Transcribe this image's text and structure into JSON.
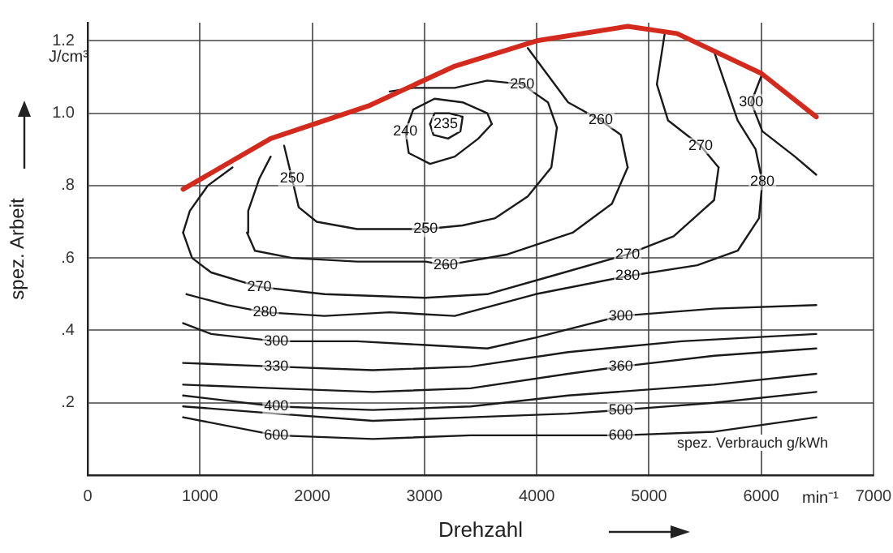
{
  "chart_data": {
    "type": "line",
    "xlabel": "Drehzahl",
    "ylabel": "spez. Arbeit",
    "xlim": [
      0,
      7000
    ],
    "ylim": [
      0,
      1.25
    ],
    "xticks": [
      0,
      1000,
      2000,
      3000,
      4000,
      5000,
      6000,
      7000
    ],
    "yticks": [
      {
        "value": 0,
        "label": null
      },
      {
        "value": 0.2,
        "label": ".2"
      },
      {
        "value": 0.4,
        "label": ".4"
      },
      {
        "value": 0.6,
        "label": ".6"
      },
      {
        "value": 0.8,
        "label": ".8"
      },
      {
        "value": 1.0,
        "label": "1.0"
      },
      {
        "value": 1.2,
        "label": "1.2"
      }
    ],
    "grid": true,
    "series": [
      {
        "color": "#d42a1e",
        "x": [
          850,
          1630,
          2500,
          3270,
          4000,
          4810,
          5250,
          6000,
          6490
        ],
        "values": [
          0.79,
          0.93,
          1.02,
          1.13,
          1.2,
          1.24,
          1.22,
          1.11,
          0.99
        ]
      },
      {
        "color": "#1a1a1a",
        "x": [
          3050,
          3090,
          3220,
          3340
        ],
        "values": [
          0.97,
          1.0,
          1.0,
          0.99
        ]
      },
      {
        "color": "#1a1a1a",
        "x": [
          3050,
          3080,
          3210,
          3320,
          3340
        ],
        "values": [
          0.97,
          0.94,
          0.93,
          0.95,
          0.99
        ]
      },
      {
        "color": "#1a1a1a",
        "x": [
          2830,
          2900,
          3090,
          3340,
          3560,
          3600
        ],
        "values": [
          0.95,
          1.01,
          1.04,
          1.03,
          1.0,
          0.97
        ]
      },
      {
        "color": "#1a1a1a",
        "x": [
          2830,
          2860,
          3050,
          3270,
          3480,
          3600
        ],
        "values": [
          0.95,
          0.89,
          0.86,
          0.88,
          0.93,
          0.97
        ]
      },
      {
        "color": "#1a1a1a",
        "x": [
          1750,
          1820,
          1880,
          2040,
          2400,
          3010,
          3340,
          3630,
          3920,
          4130,
          4180
        ],
        "values": [
          0.91,
          0.82,
          0.74,
          0.7,
          0.68,
          0.68,
          0.69,
          0.71,
          0.77,
          0.85,
          0.96
        ]
      },
      {
        "color": "#1a1a1a",
        "x": [
          2690,
          2900,
          3270,
          3560,
          3870,
          4100,
          4180
        ],
        "values": [
          1.06,
          1.07,
          1.07,
          1.09,
          1.08,
          1.03,
          0.96
        ]
      },
      {
        "color": "#1a1a1a",
        "x": [
          1420,
          1430,
          1530,
          1630
        ],
        "values": [
          0.67,
          0.73,
          0.82,
          0.88
        ]
      },
      {
        "color": "#1a1a1a",
        "x": [
          1420,
          1490,
          1820,
          2400,
          3010,
          3190,
          3740,
          4320,
          4670,
          4810
        ],
        "values": [
          0.67,
          0.62,
          0.6,
          0.59,
          0.59,
          0.58,
          0.61,
          0.67,
          0.75,
          0.85
        ]
      },
      {
        "color": "#1a1a1a",
        "x": [
          3920,
          4280,
          4570,
          4750,
          4810
        ],
        "values": [
          1.18,
          1.03,
          0.98,
          0.94,
          0.85
        ]
      },
      {
        "color": "#1a1a1a",
        "x": [
          850,
          910,
          1070,
          1290
        ],
        "values": [
          0.67,
          0.73,
          0.8,
          0.85
        ]
      },
      {
        "color": "#1a1a1a",
        "x": [
          850,
          930,
          1100,
          1530,
          2110,
          3010,
          3560,
          4130,
          4810,
          5220,
          5580,
          5620
        ],
        "values": [
          0.67,
          0.6,
          0.56,
          0.52,
          0.5,
          0.49,
          0.5,
          0.55,
          0.61,
          0.66,
          0.76,
          0.85
        ]
      },
      {
        "color": "#1a1a1a",
        "x": [
          5070,
          5170,
          5460,
          5620
        ],
        "values": [
          1.08,
          0.98,
          0.91,
          0.85
        ]
      },
      {
        "color": "#1a1a1a",
        "x": [
          5070,
          5140
        ],
        "values": [
          1.08,
          1.22
        ]
      },
      {
        "color": "#1a1a1a",
        "x": [
          880,
          1240,
          1580,
          2110,
          2690,
          3270,
          3990,
          4810,
          5430,
          5790,
          5980,
          6010
        ],
        "values": [
          0.5,
          0.47,
          0.45,
          0.44,
          0.45,
          0.44,
          0.5,
          0.55,
          0.58,
          0.62,
          0.71,
          0.81
        ]
      },
      {
        "color": "#1a1a1a",
        "x": [
          5580,
          5790,
          5950,
          6010
        ],
        "values": [
          1.17,
          0.98,
          0.9,
          0.81
        ]
      },
      {
        "color": "#1a1a1a",
        "x": [
          5910,
          6010
        ],
        "values": [
          1.03,
          1.11
        ]
      },
      {
        "color": "#1a1a1a",
        "x": [
          5910,
          6010,
          6300,
          6490
        ],
        "values": [
          1.03,
          0.95,
          0.88,
          0.83
        ]
      },
      {
        "color": "#1a1a1a",
        "x": [
          850,
          1100,
          1680,
          2400,
          2980,
          3560,
          3990,
          4750,
          5580,
          6490
        ],
        "values": [
          0.42,
          0.39,
          0.37,
          0.37,
          0.36,
          0.35,
          0.38,
          0.44,
          0.46,
          0.47
        ]
      },
      {
        "color": "#1a1a1a",
        "x": [
          850,
          1680,
          2540,
          3410,
          4280,
          5290,
          6490
        ],
        "values": [
          0.31,
          0.3,
          0.29,
          0.3,
          0.34,
          0.37,
          0.39
        ]
      },
      {
        "color": "#1a1a1a",
        "x": [
          850,
          1680,
          2540,
          3410,
          4280,
          4750,
          5580,
          6490
        ],
        "values": [
          0.25,
          0.24,
          0.23,
          0.24,
          0.28,
          0.3,
          0.33,
          0.35
        ]
      },
      {
        "color": "#1a1a1a",
        "x": [
          850,
          1680,
          2540,
          3410,
          4280,
          5580,
          6490
        ],
        "values": [
          0.22,
          0.19,
          0.18,
          0.19,
          0.22,
          0.25,
          0.28
        ]
      },
      {
        "color": "#1a1a1a",
        "x": [
          850,
          1680,
          2540,
          3410,
          4280,
          4750,
          5580,
          6490
        ],
        "values": [
          0.19,
          0.17,
          0.15,
          0.16,
          0.17,
          0.18,
          0.2,
          0.23
        ]
      },
      {
        "color": "#1a1a1a",
        "x": [
          850,
          1680,
          2540,
          3410,
          4280,
          4750,
          5580,
          6490
        ],
        "values": [
          0.16,
          0.11,
          0.1,
          0.11,
          0.11,
          0.11,
          0.12,
          0.16
        ]
      }
    ],
    "annotations": [
      "J/cm³",
      "min⁻¹",
      "spez. Verbrauch   g/kWh",
      {
        "text": "235",
        "x": 3190,
        "y": 0.97
      },
      {
        "text": "240",
        "x": 2830,
        "y": 0.95
      },
      {
        "text": "250",
        "x": 1820,
        "y": 0.82
      },
      {
        "text": "250",
        "x": 3010,
        "y": 0.68
      },
      {
        "text": "250",
        "x": 3870,
        "y": 1.08
      },
      {
        "text": "260",
        "x": 3190,
        "y": 0.58
      },
      {
        "text": "260",
        "x": 4570,
        "y": 0.98
      },
      {
        "text": "270",
        "x": 1530,
        "y": 0.52
      },
      {
        "text": "270",
        "x": 4810,
        "y": 0.61
      },
      {
        "text": "270",
        "x": 5460,
        "y": 0.91
      },
      {
        "text": "280",
        "x": 1580,
        "y": 0.45
      },
      {
        "text": "280",
        "x": 4810,
        "y": 0.55
      },
      {
        "text": "280",
        "x": 6010,
        "y": 0.81
      },
      {
        "text": "300",
        "x": 1680,
        "y": 0.37
      },
      {
        "text": "300",
        "x": 4750,
        "y": 0.44
      },
      {
        "text": "300",
        "x": 5910,
        "y": 1.03
      },
      {
        "text": "330",
        "x": 1680,
        "y": 0.3
      },
      {
        "text": "360",
        "x": 4750,
        "y": 0.3
      },
      {
        "text": "400",
        "x": 1680,
        "y": 0.19
      },
      {
        "text": "500",
        "x": 4750,
        "y": 0.18
      },
      {
        "text": "600",
        "x": 1680,
        "y": 0.11
      },
      {
        "text": "600",
        "x": 4750,
        "y": 0.11
      }
    ]
  }
}
